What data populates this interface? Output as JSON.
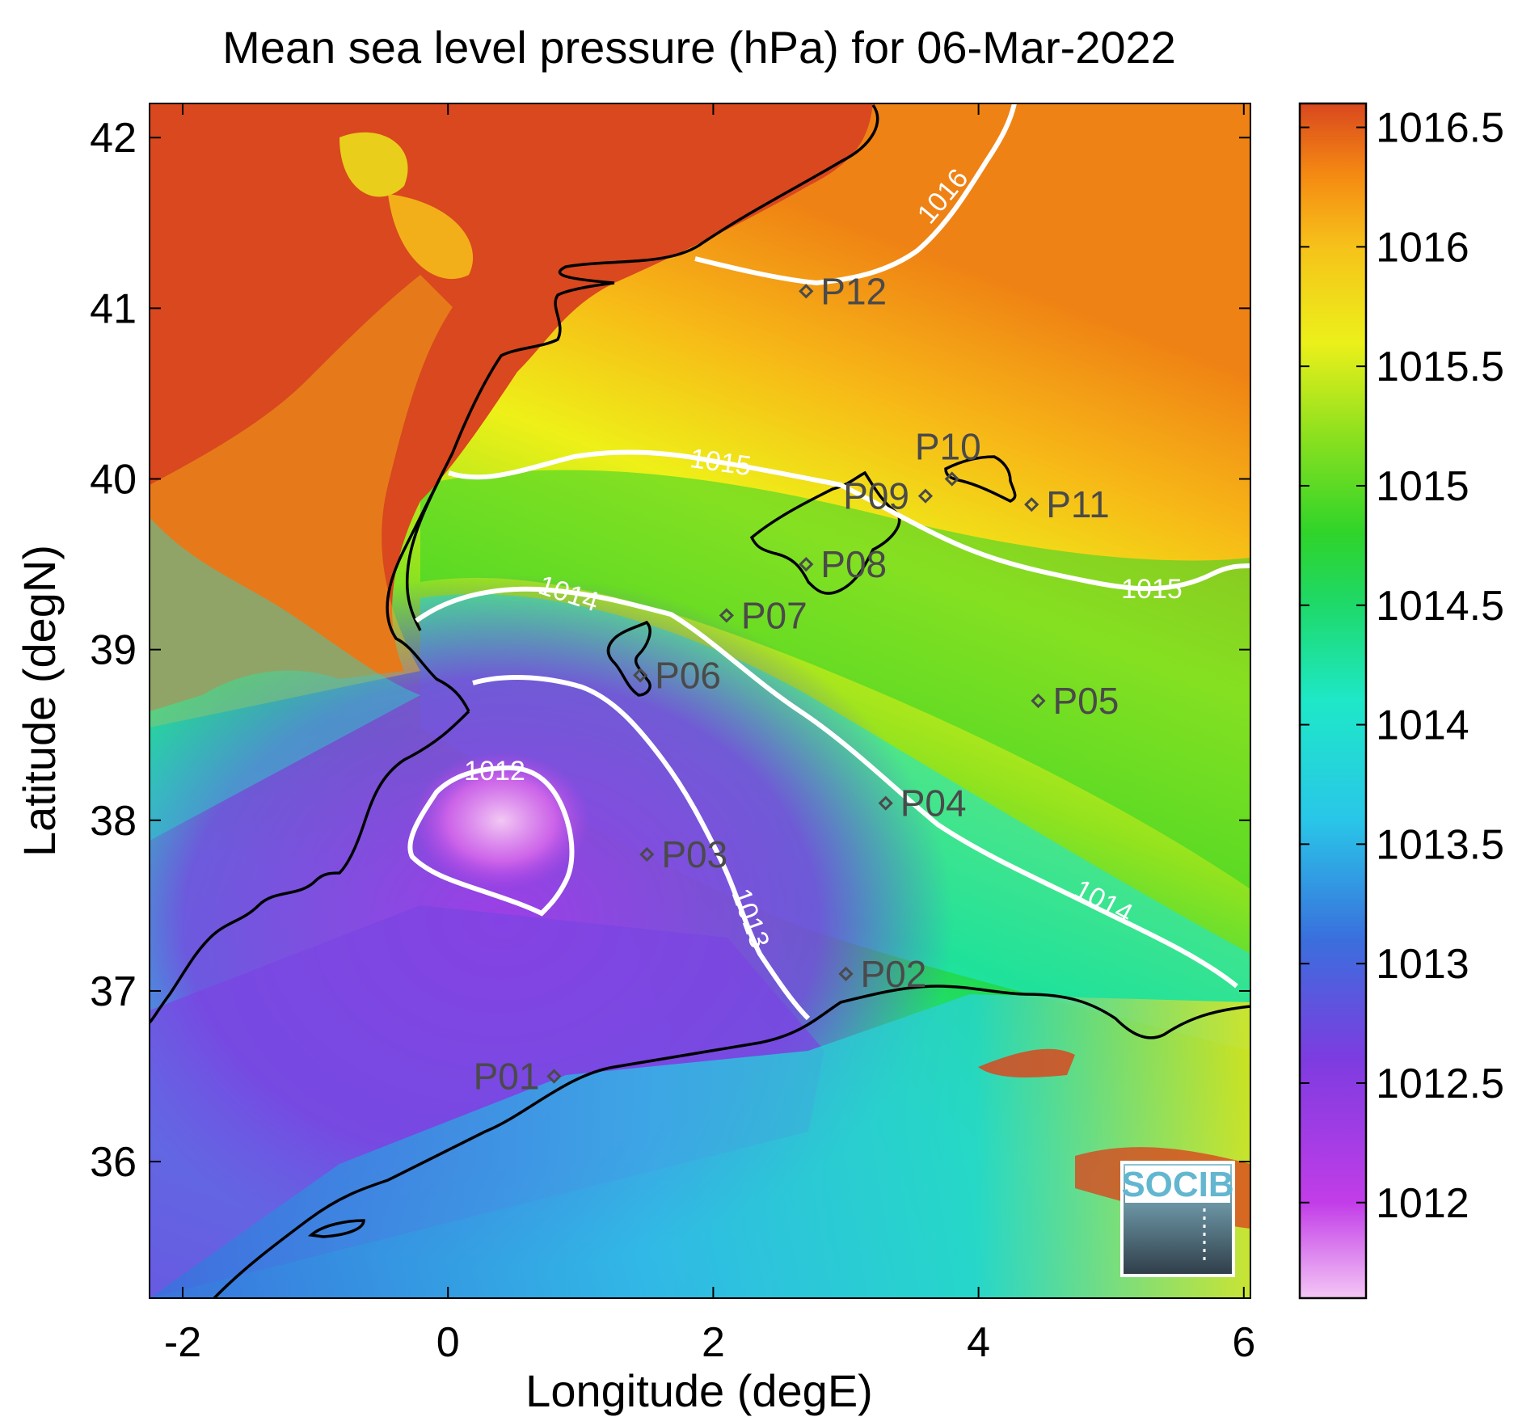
{
  "title": "Mean sea level pressure (hPa) for 06-Mar-2022",
  "xlabel": "Longitude (degE)",
  "ylabel": "Latitude (degN)",
  "x_ticks": [
    "-2",
    "0",
    "2",
    "4",
    "6"
  ],
  "y_ticks": [
    "36",
    "37",
    "38",
    "39",
    "40",
    "41",
    "42"
  ],
  "colorbar_ticks": [
    "1012",
    "1012.5",
    "1013",
    "1013.5",
    "1014",
    "1014.5",
    "1015",
    "1015.5",
    "1016",
    "1016.5"
  ],
  "contour_labels": [
    "1012",
    "1013",
    "1014",
    "1014",
    "1015",
    "1015",
    "1016"
  ],
  "logo_text": "SOCIB",
  "chart_data": {
    "type": "heatmap",
    "title": "Mean sea level pressure (hPa) for 06-Mar-2022",
    "xlabel": "Longitude (degE)",
    "ylabel": "Latitude (degN)",
    "xlim": [
      -2.25,
      6.05
    ],
    "ylim": [
      35.2,
      42.2
    ],
    "color_range": [
      1011.6,
      1016.6
    ],
    "colormap": [
      "#f4c6f5",
      "#c23de8",
      "#7d3ce0",
      "#3a6fdd",
      "#29c6e8",
      "#1ee8c8",
      "#1ed96a",
      "#2fd42a",
      "#8ae01f",
      "#ecf01a",
      "#f6c21a",
      "#f58a12",
      "#d9481e"
    ],
    "contour_levels": [
      1012,
      1013,
      1014,
      1015,
      1016
    ],
    "stations": [
      {
        "name": "P01",
        "lon": 0.8,
        "lat": 36.5
      },
      {
        "name": "P02",
        "lon": 3.0,
        "lat": 37.1
      },
      {
        "name": "P03",
        "lon": 1.5,
        "lat": 37.8
      },
      {
        "name": "P04",
        "lon": 3.3,
        "lat": 38.1
      },
      {
        "name": "P05",
        "lon": 4.45,
        "lat": 38.7
      },
      {
        "name": "P06",
        "lon": 1.45,
        "lat": 38.85
      },
      {
        "name": "P07",
        "lon": 2.1,
        "lat": 39.2
      },
      {
        "name": "P08",
        "lon": 2.7,
        "lat": 39.5
      },
      {
        "name": "P09",
        "lon": 3.6,
        "lat": 39.9
      },
      {
        "name": "P10",
        "lon": 3.8,
        "lat": 40.0
      },
      {
        "name": "P11",
        "lon": 4.4,
        "lat": 39.85
      },
      {
        "name": "P12",
        "lon": 2.7,
        "lat": 41.1
      }
    ],
    "colors": {
      "contour": "#ffffff",
      "coastline": "#000000",
      "station": "#4a4a4a",
      "logo_text": "#63b6d0"
    }
  }
}
